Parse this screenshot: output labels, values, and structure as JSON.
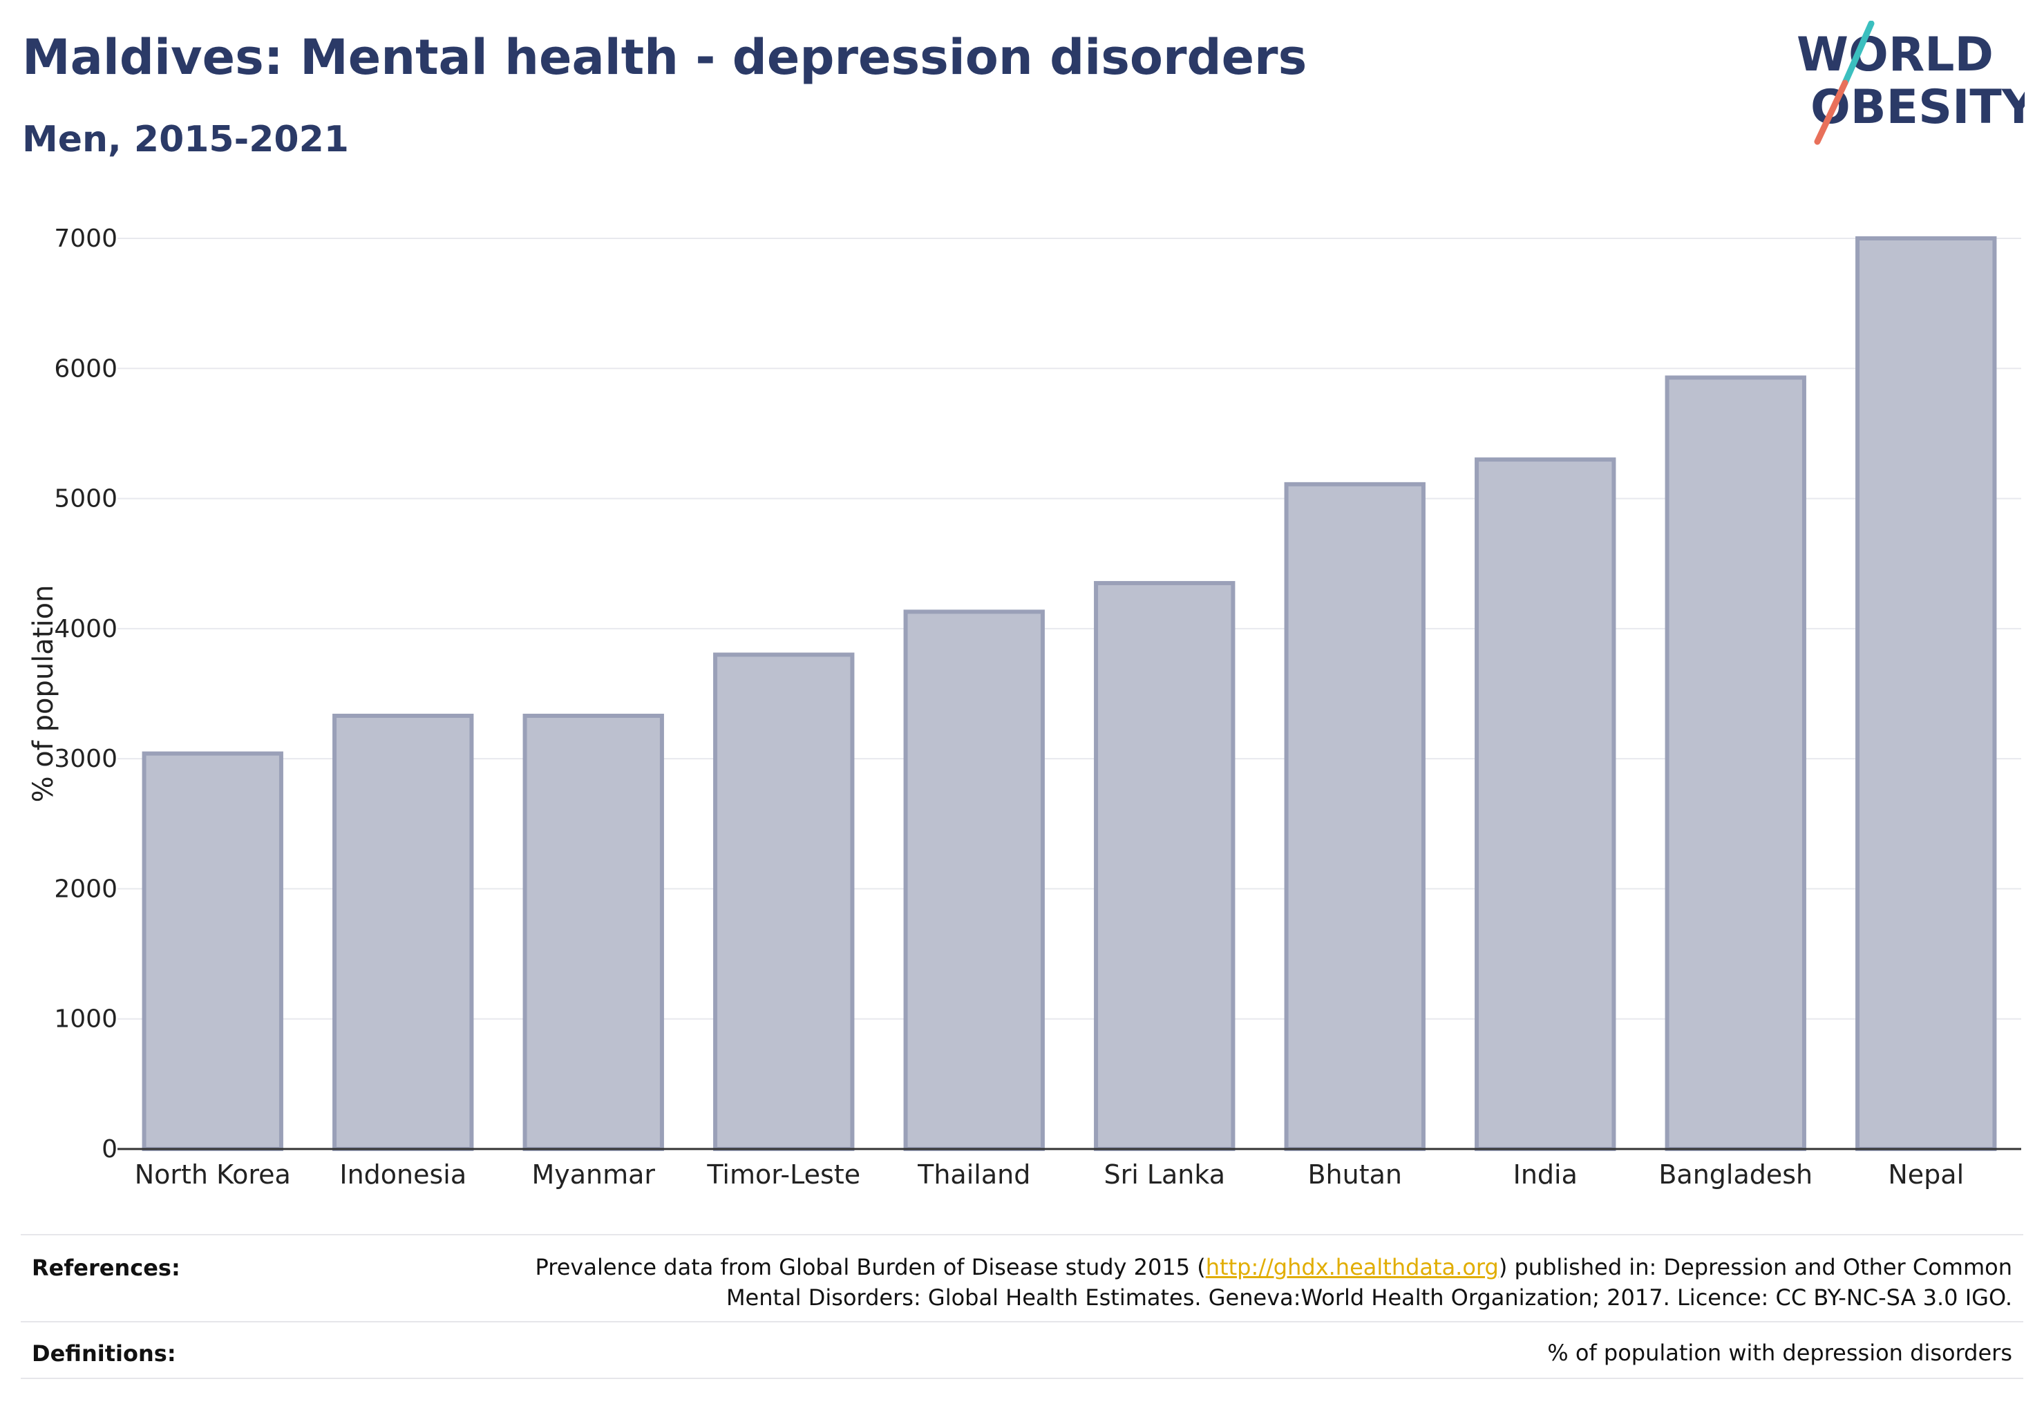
{
  "header": {
    "title": "Maldives: Mental health - depression disorders",
    "subtitle": "Men, 2015-2021"
  },
  "logo": {
    "line1": "WORLD",
    "line2": "OBESITY",
    "accent_teal": "#3bbfbf",
    "accent_coral": "#e8705a"
  },
  "chart_data": {
    "type": "bar",
    "categories": [
      "North Korea",
      "Indonesia",
      "Myanmar",
      "Timor-Leste",
      "Thailand",
      "Sri Lanka",
      "Bhutan",
      "India",
      "Bangladesh",
      "Nepal"
    ],
    "values": [
      3040,
      3330,
      3330,
      3800,
      4130,
      4350,
      5110,
      5300,
      5930,
      7000
    ],
    "ylabel": "% of population",
    "ylim": [
      0,
      7000
    ],
    "yticks": [
      0,
      1000,
      2000,
      3000,
      4000,
      5000,
      6000,
      7000
    ],
    "grid": true,
    "bar_fill": "#bcc0cf",
    "bar_stroke": "#9aa0b8"
  },
  "footer": {
    "references_label": "References:",
    "references_pre": "Prevalence data from Global Burden of Disease study 2015 (",
    "references_link": "http://ghdx.healthdata.org",
    "references_post": ") published in: Depression and Other Common",
    "references_line2": "Mental Disorders: Global Health Estimates. Geneva:World Health Organization; 2017. Licence: CC BY-NC-SA 3.0 IGO.",
    "definitions_label": "Definitions:",
    "definitions_text": "% of population with depression disorders"
  }
}
